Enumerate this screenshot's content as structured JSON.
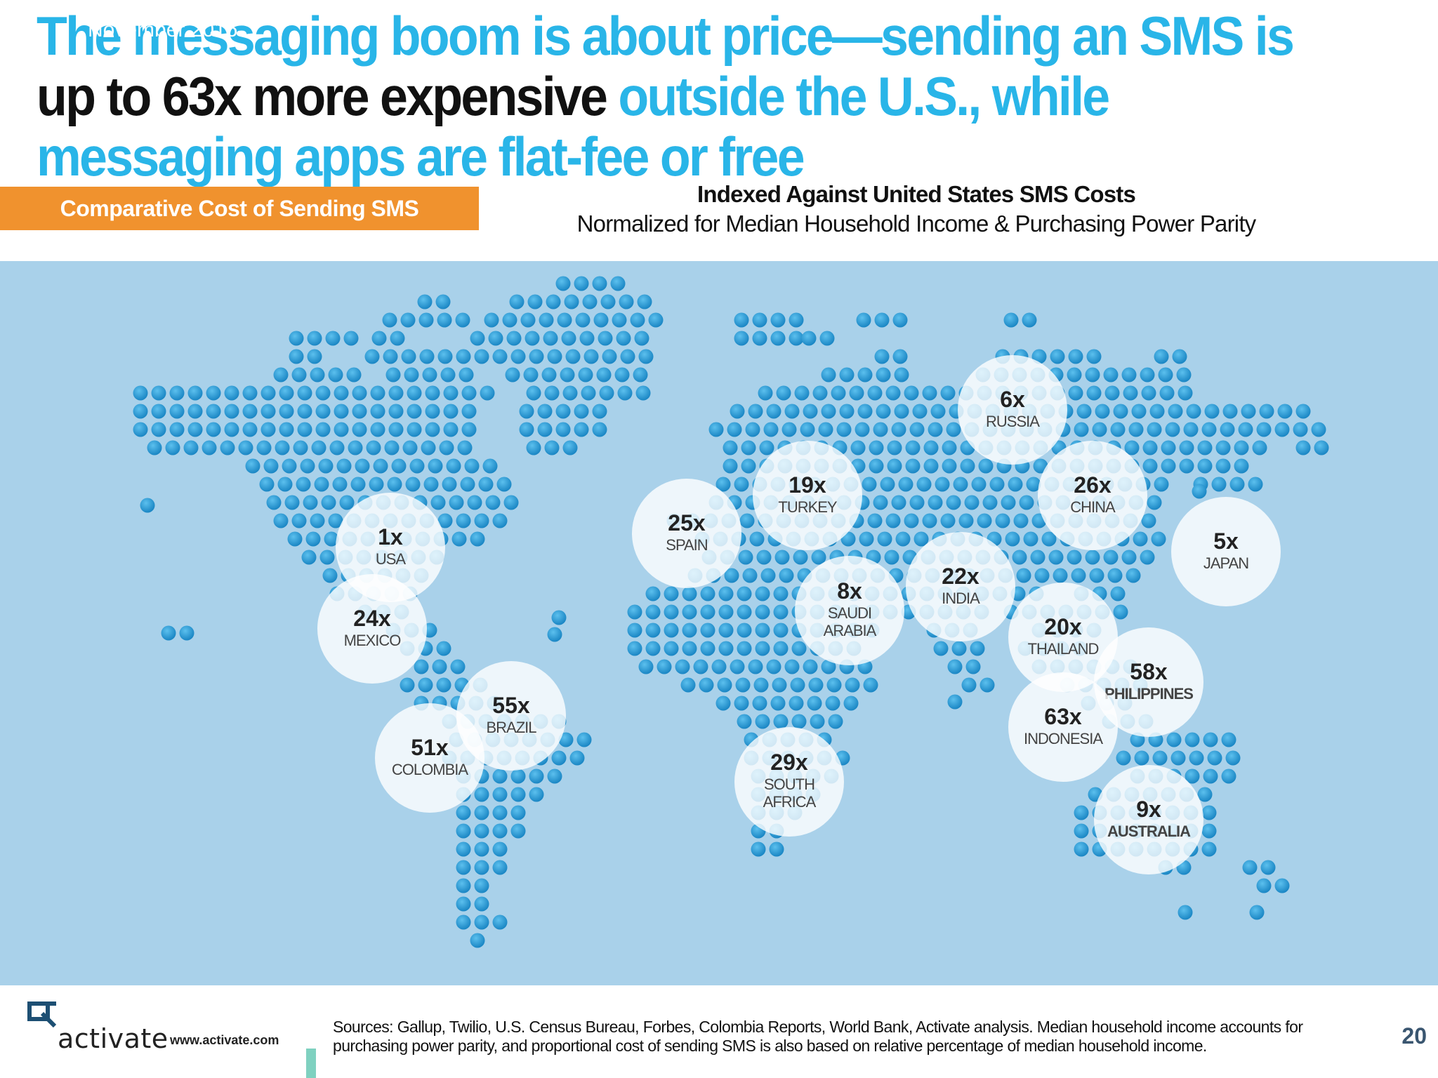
{
  "header": {
    "date": "November 2016",
    "headline_part1": "The messaging boom is about price—sending an SMS is",
    "headline_part2": "up to 63x more expensive",
    "headline_part3": "outside the U.S., while messaging apps are flat-fee or free"
  },
  "chart_tag": "Comparative Cost of Sending SMS",
  "subtitle_line1": "Indexed Against United States SMS Costs",
  "subtitle_line2": "Normalized for Median Household Income & Purchasing Power Parity",
  "colors": {
    "accent_blue": "#29b5e8",
    "map_background": "#a9d1ea",
    "dot": "#2396d0",
    "tag_orange": "#f0922e",
    "highlight_red": "#8b1c1c"
  },
  "chart_data": {
    "type": "map",
    "title": "Comparative Cost of Sending SMS",
    "unit": "x (multiple of U.S. SMS cost)",
    "countries": [
      {
        "country": "USA",
        "label_lines": [
          "USA"
        ],
        "value": 1,
        "value_label": "1x"
      },
      {
        "country": "Mexico",
        "label_lines": [
          "MEXICO"
        ],
        "value": 24,
        "value_label": "24x"
      },
      {
        "country": "Colombia",
        "label_lines": [
          "COLOMBIA"
        ],
        "value": 51,
        "value_label": "51x"
      },
      {
        "country": "Brazil",
        "label_lines": [
          "BRAZIL"
        ],
        "value": 55,
        "value_label": "55x"
      },
      {
        "country": "Spain",
        "label_lines": [
          "SPAIN"
        ],
        "value": 25,
        "value_label": "25x"
      },
      {
        "country": "Turkey",
        "label_lines": [
          "TURKEY"
        ],
        "value": 19,
        "value_label": "19x"
      },
      {
        "country": "Saudi Arabia",
        "label_lines": [
          "SAUDI",
          "ARABIA"
        ],
        "value": 8,
        "value_label": "8x"
      },
      {
        "country": "South Africa",
        "label_lines": [
          "SOUTH",
          "AFRICA"
        ],
        "value": 29,
        "value_label": "29x"
      },
      {
        "country": "Russia",
        "label_lines": [
          "RUSSIA"
        ],
        "value": 6,
        "value_label": "6x"
      },
      {
        "country": "India",
        "label_lines": [
          "INDIA"
        ],
        "value": 22,
        "value_label": "22x"
      },
      {
        "country": "China",
        "label_lines": [
          "CHINA"
        ],
        "value": 26,
        "value_label": "26x"
      },
      {
        "country": "Japan",
        "label_lines": [
          "JAPAN"
        ],
        "value": 5,
        "value_label": "5x"
      },
      {
        "country": "Thailand",
        "label_lines": [
          "THAILAND"
        ],
        "value": 20,
        "value_label": "20x"
      },
      {
        "country": "Philippines",
        "label_lines": [
          "PHILIPPINES"
        ],
        "value": 58,
        "value_label": "58x"
      },
      {
        "country": "Indonesia",
        "label_lines": [
          "INDONESIA"
        ],
        "value": 63,
        "value_label": "63x"
      },
      {
        "country": "Australia",
        "label_lines": [
          "AUSTRALIA"
        ],
        "value": 9,
        "value_label": "9x"
      }
    ]
  },
  "footer": {
    "logo_text": "activate",
    "url": "www.activate.com",
    "sources": "Sources: Gallup, Twilio, U.S. Census Bureau, Forbes, Colombia Reports, World Bank, Activate analysis. Median household income accounts for purchasing power parity, and proportional cost of sending SMS is also based on relative percentage of median household income.",
    "page_number": "20"
  }
}
